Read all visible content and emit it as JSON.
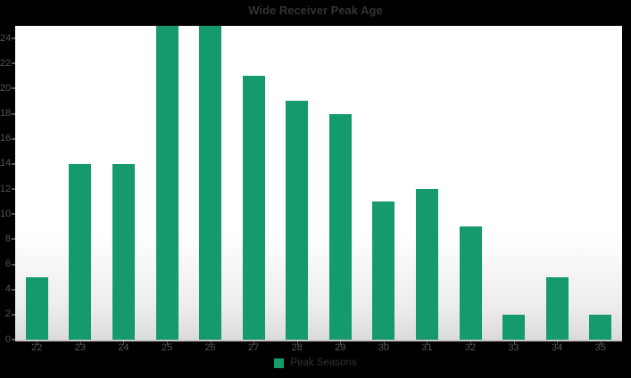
{
  "chart_data": {
    "type": "bar",
    "title": "Wide Receiver Peak Age",
    "categories": [
      "22",
      "23",
      "24",
      "25",
      "26",
      "27",
      "28",
      "29",
      "30",
      "31",
      "32",
      "33",
      "34",
      "35"
    ],
    "series": [
      {
        "name": "Peak Seasons",
        "values": [
          5,
          14,
          14,
          25,
          25,
          21,
          19,
          18,
          11,
          12,
          9,
          2,
          5,
          2
        ]
      }
    ],
    "xlabel": "",
    "ylabel": "",
    "ylim": [
      0,
      25
    ],
    "yticks": [
      0,
      2,
      4,
      6,
      8,
      10,
      12,
      14,
      16,
      18,
      20,
      22,
      24
    ],
    "grid": false,
    "legend": {
      "label": "Peak Seasons",
      "position": "bottom"
    },
    "colors": {
      "bar": "#159a6b",
      "canvas_background": "#000000",
      "title_text": "#333333",
      "axis_text": "#565656",
      "axis_line": "#c6c6c6",
      "plot_background_top": "#ffffff",
      "plot_background_bottom": "#dbdbdb"
    }
  }
}
